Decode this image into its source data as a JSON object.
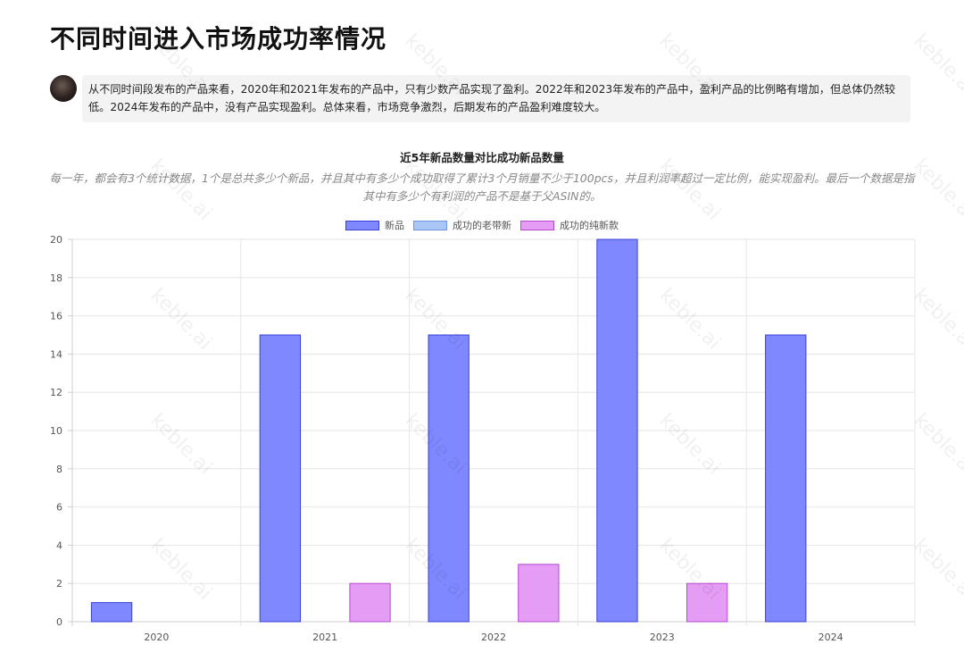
{
  "page": {
    "title": "不同时间进入市场成功率情况",
    "summary": "从不同时间段发布的产品来看，2020年和2021年发布的产品中，只有少数产品实现了盈利。2022年和2023年发布的产品中，盈利产品的比例略有增加，但总体仍然较低。2024年发布的产品中，没有产品实现盈利。总体来看，市场竞争激烈，后期发布的产品盈利难度较大。",
    "watermark": "keble.ai"
  },
  "chart_data": {
    "type": "bar",
    "title": "近5年新品数量对比成功新品数量",
    "subtitle": "每一年，都会有3个统计数据，1个是总共多少个新品，并且其中有多少个成功取得了累计3个月销量不少于100pcs，并且利润率超过一定比例，能实现盈利。最后一个数据是指其中有多少个有利润的产品不是基于父ASIN的。",
    "categories": [
      "2020",
      "2021",
      "2022",
      "2023",
      "2024"
    ],
    "series": [
      {
        "name": "新品",
        "values": [
          1,
          15,
          15,
          20,
          15
        ],
        "fill": "#8088ff",
        "stroke": "#3a3fd8"
      },
      {
        "name": "成功的老带新",
        "values": [
          0,
          0,
          0,
          0,
          0
        ],
        "fill": "#a9c6f5",
        "stroke": "#6f95e0"
      },
      {
        "name": "成功的纯新款",
        "values": [
          0,
          2,
          3,
          2,
          0
        ],
        "fill": "#e49cf5",
        "stroke": "#b64bd1"
      }
    ],
    "ylim": [
      0,
      20
    ],
    "yticks": [
      0,
      2,
      4,
      6,
      8,
      10,
      12,
      14,
      16,
      18,
      20
    ],
    "grid": true,
    "legend_position": "top"
  }
}
